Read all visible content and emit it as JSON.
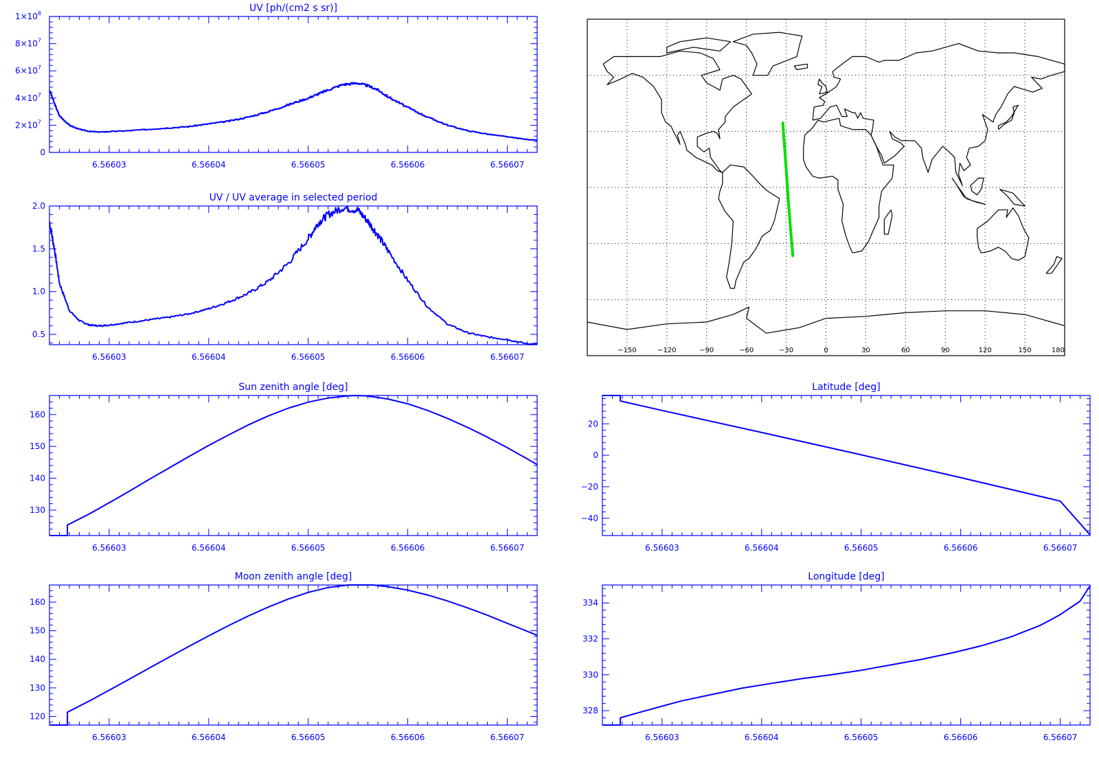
{
  "colors": {
    "axis": "#0000ff",
    "line": "#0000ff",
    "map_lines": "#000000",
    "track": "#00e000",
    "background": "#ffffff"
  },
  "x_ticks": [
    "6.56603",
    "6.56604",
    "6.56605",
    "6.56606",
    "6.56607"
  ],
  "chart_data": [
    {
      "id": "uv",
      "type": "line",
      "title": "UV [ph/(cm2 s sr)]",
      "xlabel": "",
      "ylabel": "",
      "xlim": [
        6.566024,
        6.566073
      ],
      "ylim": [
        0,
        100000000
      ],
      "yticks": [
        {
          "value": 0,
          "label": "0"
        },
        {
          "value": 20000000,
          "label": "2×10",
          "exp": "7"
        },
        {
          "value": 40000000,
          "label": "4×10",
          "exp": "7"
        },
        {
          "value": 60000000,
          "label": "6×10",
          "exp": "7"
        },
        {
          "value": 80000000,
          "label": "8×10",
          "exp": "7"
        },
        {
          "value": 100000000,
          "label": "1×10",
          "exp": "8"
        }
      ],
      "step": true,
      "x": [
        6.566024,
        6.5660245,
        6.566025,
        6.566026,
        6.566027,
        6.566028,
        6.566029,
        6.56603,
        6.566032,
        6.566034,
        6.566036,
        6.566038,
        6.56604,
        6.566042,
        6.566044,
        6.566046,
        6.566048,
        6.56605,
        6.566051,
        6.566052,
        6.5660535,
        6.566055,
        6.566056,
        6.566057,
        6.566058,
        6.56606,
        6.566062,
        6.566064,
        6.566066,
        6.566068,
        6.56607,
        6.566072,
        6.566073
      ],
      "y": [
        46000000,
        36000000,
        27000000,
        20000000,
        17000000,
        15500000,
        15000000,
        15300000,
        16000000,
        17000000,
        18000000,
        19000000,
        21000000,
        23000000,
        26000000,
        30000000,
        35000000,
        40000000,
        43000000,
        46000000,
        50000000,
        51000000,
        49000000,
        46000000,
        41000000,
        33000000,
        26000000,
        20000000,
        16000000,
        13500000,
        11500000,
        9500000,
        9000000
      ]
    },
    {
      "id": "uv_ratio",
      "type": "line",
      "title": "UV / UV average in selected period",
      "xlabel": "",
      "ylabel": "",
      "xlim": [
        6.566024,
        6.566073
      ],
      "ylim": [
        0.38,
        2.0
      ],
      "yticks": [
        {
          "value": 0.5,
          "label": "0.5"
        },
        {
          "value": 1.0,
          "label": "1.0"
        },
        {
          "value": 1.5,
          "label": "1.5"
        },
        {
          "value": 2.0,
          "label": "2.0"
        }
      ],
      "noise": 0.045,
      "x": [
        6.566024,
        6.5660245,
        6.566025,
        6.566026,
        6.566027,
        6.566028,
        6.566029,
        6.56603,
        6.566032,
        6.566034,
        6.566036,
        6.566038,
        6.56604,
        6.566042,
        6.566044,
        6.566046,
        6.566048,
        6.56605,
        6.566051,
        6.566052,
        6.5660535,
        6.566055,
        6.566056,
        6.566057,
        6.566058,
        6.56606,
        6.566062,
        6.566064,
        6.566066,
        6.566068,
        6.56607,
        6.566072,
        6.566073
      ],
      "y": [
        1.82,
        1.5,
        1.1,
        0.78,
        0.66,
        0.61,
        0.6,
        0.61,
        0.64,
        0.67,
        0.7,
        0.74,
        0.8,
        0.88,
        0.98,
        1.12,
        1.33,
        1.62,
        1.8,
        1.9,
        1.98,
        1.95,
        1.82,
        1.66,
        1.48,
        1.13,
        0.82,
        0.62,
        0.52,
        0.47,
        0.44,
        0.39,
        0.38
      ]
    },
    {
      "id": "sun_zenith",
      "type": "line",
      "title": "Sun zenith angle [deg]",
      "xlabel": "",
      "ylabel": "",
      "xlim": [
        6.566024,
        6.566073
      ],
      "ylim": [
        122,
        166
      ],
      "yticks": [
        {
          "value": 130,
          "label": "130"
        },
        {
          "value": 140,
          "label": "140"
        },
        {
          "value": 150,
          "label": "150"
        },
        {
          "value": 160,
          "label": "160"
        }
      ],
      "x": [
        6.566024,
        6.5660258,
        6.5660258,
        6.566028,
        6.56603,
        6.566032,
        6.566034,
        6.566036,
        6.566038,
        6.56604,
        6.566042,
        6.566044,
        6.566046,
        6.566048,
        6.56605,
        6.566052,
        6.566054,
        6.566055,
        6.566056,
        6.566058,
        6.56606,
        6.566062,
        6.566064,
        6.566066,
        6.566068,
        6.56607,
        6.566072,
        6.566073
      ],
      "y": [
        122,
        122,
        125.3,
        128.8,
        132.3,
        135.9,
        139.6,
        143.2,
        146.8,
        150.3,
        153.6,
        156.8,
        159.6,
        162.0,
        163.9,
        165.2,
        165.9,
        166.0,
        165.8,
        164.9,
        163.4,
        161.3,
        158.8,
        156.0,
        152.9,
        149.6,
        146.1,
        144.3
      ]
    },
    {
      "id": "moon_zenith",
      "type": "line",
      "title": "Moon zenith angle [deg]",
      "xlabel": "",
      "ylabel": "",
      "xlim": [
        6.566024,
        6.566073
      ],
      "ylim": [
        117,
        166
      ],
      "yticks": [
        {
          "value": 120,
          "label": "120"
        },
        {
          "value": 130,
          "label": "130"
        },
        {
          "value": 140,
          "label": "140"
        },
        {
          "value": 150,
          "label": "150"
        },
        {
          "value": 160,
          "label": "160"
        }
      ],
      "x": [
        6.566024,
        6.5660258,
        6.5660258,
        6.566028,
        6.56603,
        6.566032,
        6.566034,
        6.566036,
        6.566038,
        6.56604,
        6.566042,
        6.566044,
        6.566046,
        6.566048,
        6.56605,
        6.566052,
        6.566054,
        6.566056,
        6.5660565,
        6.566058,
        6.56606,
        6.566062,
        6.566064,
        6.566066,
        6.566068,
        6.56607,
        6.566072,
        6.566073
      ],
      "y": [
        117,
        117,
        121.5,
        125.4,
        129.2,
        133.0,
        136.9,
        140.7,
        144.5,
        148.2,
        151.8,
        155.2,
        158.3,
        161.1,
        163.4,
        165.1,
        166.0,
        166.2,
        166.0,
        165.4,
        164.2,
        162.5,
        160.4,
        158.0,
        155.4,
        152.6,
        149.8,
        148.4
      ]
    },
    {
      "id": "latitude",
      "type": "line",
      "title": "Latitude [deg]",
      "xlabel": "",
      "ylabel": "",
      "xlim": [
        6.566024,
        6.566073
      ],
      "ylim": [
        -51,
        38
      ],
      "yticks": [
        {
          "value": -40,
          "label": "−40"
        },
        {
          "value": -20,
          "label": "−20"
        },
        {
          "value": 0,
          "label": "0"
        },
        {
          "value": 20,
          "label": "20"
        }
      ],
      "x": [
        6.566024,
        6.5660258,
        6.5660258,
        6.56603,
        6.56604,
        6.56605,
        6.56606,
        6.56607,
        6.566073
      ],
      "y": [
        38,
        38,
        34.5,
        28.5,
        14.5,
        0.3,
        -14.2,
        -29.1,
        -50.5
      ]
    },
    {
      "id": "longitude",
      "type": "line",
      "title": "Longitude [deg]",
      "xlabel": "",
      "ylabel": "",
      "xlim": [
        6.566024,
        6.566073
      ],
      "ylim": [
        327.2,
        335
      ],
      "yticks": [
        {
          "value": 328,
          "label": "328"
        },
        {
          "value": 330,
          "label": "330"
        },
        {
          "value": 332,
          "label": "332"
        },
        {
          "value": 334,
          "label": "334"
        }
      ],
      "x": [
        6.566024,
        6.5660258,
        6.5660258,
        6.566028,
        6.56603,
        6.566032,
        6.566035,
        6.566038,
        6.566041,
        6.566044,
        6.566047,
        6.56605,
        6.566053,
        6.566056,
        6.566059,
        6.566062,
        6.566065,
        6.566068,
        6.56607,
        6.566072,
        6.566073
      ],
      "y": [
        327.2,
        327.2,
        327.6,
        327.95,
        328.25,
        328.55,
        328.9,
        329.25,
        329.52,
        329.78,
        330.0,
        330.25,
        330.55,
        330.85,
        331.2,
        331.6,
        332.1,
        332.75,
        333.35,
        334.1,
        334.95
      ]
    }
  ],
  "map": {
    "type": "map",
    "xlim": [
      -180,
      180
    ],
    "ylim": [
      -90,
      90
    ],
    "xticks": [
      "−150",
      "−120",
      "−90",
      "−60",
      "−30",
      "0",
      "30",
      "60",
      "90",
      "120",
      "150",
      "180"
    ],
    "grid": "dotted, every 30 deg",
    "projection": "cylindrical",
    "track": {
      "lon": [
        -32.5,
        -32.0,
        -31.2,
        -30.5,
        -29.8,
        -29.1,
        -28.4,
        -27.6,
        -26.8,
        -25.9,
        -25.0
      ],
      "lat": [
        34.5,
        28.5,
        21.5,
        14.5,
        7.5,
        0.3,
        -7.0,
        -14.2,
        -21.6,
        -29.1,
        -36.5
      ]
    }
  }
}
